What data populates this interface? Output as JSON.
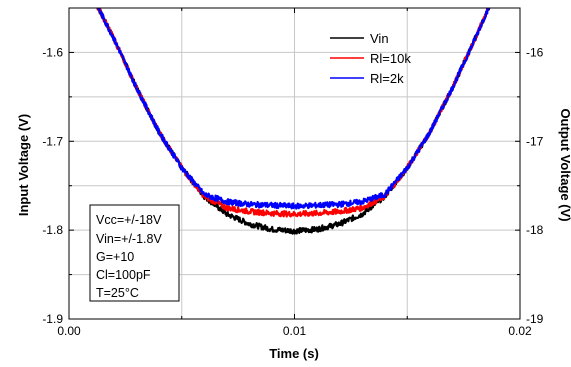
{
  "chart_data": {
    "type": "line",
    "title": "",
    "xlabel": "Time (s)",
    "ylabel_left": "Input Voltage (V)",
    "ylabel_right": "Output Voltage (V)",
    "xlim": [
      0.0,
      0.02
    ],
    "ylim_left": [
      -1.9,
      -1.55
    ],
    "ylim_right": [
      -19,
      -15.5
    ],
    "x_ticks": [
      "0.00",
      "0.01",
      "0.02"
    ],
    "y_left_ticks": [
      "-1.6",
      "-1.7",
      "-1.8",
      "-1.9"
    ],
    "y_right_ticks": [
      "-16",
      "-17",
      "-18",
      "-19"
    ],
    "grid": true,
    "legend_position": "top-right",
    "series": [
      {
        "name": "Vin",
        "color": "#000000",
        "x": [
          0.0013,
          0.002,
          0.003,
          0.004,
          0.005,
          0.006,
          0.007,
          0.008,
          0.009,
          0.01,
          0.011,
          0.012,
          0.013,
          0.014,
          0.015,
          0.016,
          0.017,
          0.018,
          0.0186
        ],
        "y": [
          -1.55,
          -1.585,
          -1.64,
          -1.69,
          -1.73,
          -1.762,
          -1.782,
          -1.793,
          -1.799,
          -1.801,
          -1.799,
          -1.793,
          -1.782,
          -1.762,
          -1.73,
          -1.69,
          -1.64,
          -1.585,
          -1.55
        ]
      },
      {
        "name": "Rl=10k",
        "color": "#ff0000",
        "x": [
          0.0013,
          0.002,
          0.003,
          0.004,
          0.005,
          0.006,
          0.007,
          0.008,
          0.009,
          0.01,
          0.011,
          0.012,
          0.013,
          0.014,
          0.015,
          0.016,
          0.017,
          0.018,
          0.0186
        ],
        "y": [
          -1.55,
          -1.585,
          -1.64,
          -1.69,
          -1.73,
          -1.762,
          -1.775,
          -1.779,
          -1.781,
          -1.782,
          -1.781,
          -1.779,
          -1.775,
          -1.762,
          -1.73,
          -1.69,
          -1.64,
          -1.585,
          -1.55
        ]
      },
      {
        "name": "Rl=2k",
        "color": "#0000ff",
        "x": [
          0.0013,
          0.002,
          0.003,
          0.004,
          0.005,
          0.006,
          0.007,
          0.008,
          0.009,
          0.01,
          0.011,
          0.012,
          0.013,
          0.014,
          0.015,
          0.016,
          0.017,
          0.018,
          0.0186
        ],
        "y": [
          -1.55,
          -1.585,
          -1.64,
          -1.69,
          -1.73,
          -1.76,
          -1.768,
          -1.771,
          -1.772,
          -1.773,
          -1.772,
          -1.771,
          -1.768,
          -1.76,
          -1.73,
          -1.69,
          -1.64,
          -1.585,
          -1.55
        ]
      }
    ],
    "conditions": [
      "Vcc=+/-18V",
      "Vin=+/-1.8V",
      "G=+10",
      "Cl=100pF",
      "T=25°C"
    ]
  }
}
